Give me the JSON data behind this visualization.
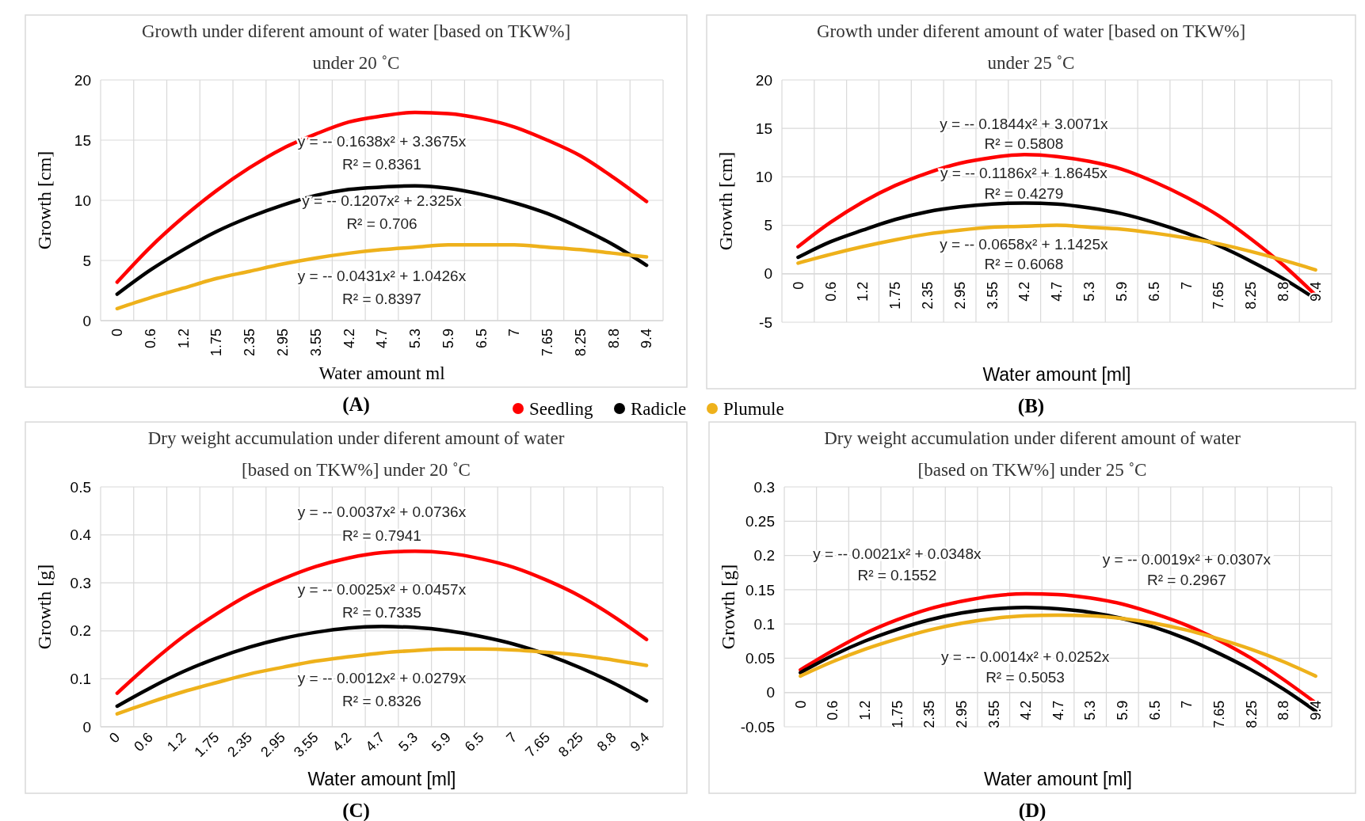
{
  "chart_data": [
    {
      "type": "line",
      "title": "Growth under diferent amount of water [based on TKW%] under 20 ˚C",
      "xlabel": "Water amount ml",
      "ylabel": "Growth [cm]",
      "categories": [
        "0",
        "0.6",
        "1.2",
        "1.75",
        "2.35",
        "2.95",
        "3.55",
        "4.2",
        "4.7",
        "5.3",
        "5.9",
        "6.5",
        "7",
        "7.65",
        "8.25",
        "8.8",
        "9.4"
      ],
      "series": [
        {
          "name": "Seedling",
          "color": "#ff0000",
          "values": [
            3.2,
            6.1,
            8.6,
            10.8,
            12.7,
            14.3,
            15.5,
            16.5,
            17.0,
            17.3,
            17.2,
            16.8,
            16.1,
            15.0,
            13.7,
            11.9,
            9.9
          ]
        },
        {
          "name": "Radicle",
          "color": "#000000",
          "values": [
            2.2,
            4.2,
            5.9,
            7.4,
            8.6,
            9.6,
            10.4,
            10.9,
            11.1,
            11.2,
            11.0,
            10.5,
            9.8,
            8.9,
            7.7,
            6.3,
            4.6
          ]
        },
        {
          "name": "Plumule",
          "color": "#eeb11b",
          "values": [
            1.0,
            1.9,
            2.7,
            3.5,
            4.1,
            4.7,
            5.2,
            5.6,
            5.9,
            6.1,
            6.3,
            6.3,
            6.3,
            6.1,
            5.9,
            5.6,
            5.3
          ]
        }
      ],
      "ylim": [
        0,
        20
      ],
      "yticks": [
        0,
        5,
        10,
        15,
        20
      ],
      "grid": true,
      "legend": "bottom",
      "annotations": [
        "y = -- 0.1638x² + 3.3675x",
        "R² = 0.8361",
        "y = -- 0.1207x² + 2.325x",
        "R² = 0.706",
        "y = -- 0.0431x² + 1.0426x",
        "R² = 0.8397",
        "(A)"
      ]
    },
    {
      "type": "line",
      "title": "Growth under diferent amount of water [based on TKW%] under 25 ˚C",
      "xlabel": "Water amount [ml]",
      "ylabel": "Growth [cm]",
      "categories": [
        "0",
        "0.6",
        "1.2",
        "1.75",
        "2.35",
        "2.95",
        "3.55",
        "4.2",
        "4.7",
        "5.3",
        "5.9",
        "6.5",
        "7",
        "7.65",
        "8.25",
        "8.8",
        "9.4"
      ],
      "series": [
        {
          "color": "#ff0000",
          "values": [
            2.8,
            5.3,
            7.4,
            9.1,
            10.4,
            11.4,
            12.0,
            12.3,
            12.1,
            11.6,
            10.8,
            9.5,
            7.9,
            6.0,
            3.6,
            0.9,
            -2.2
          ]
        },
        {
          "color": "#000000",
          "values": [
            1.7,
            3.3,
            4.5,
            5.6,
            6.4,
            6.9,
            7.2,
            7.3,
            7.2,
            6.8,
            6.2,
            5.3,
            4.2,
            2.9,
            1.3,
            -0.5,
            -2.6
          ]
        },
        {
          "color": "#eeb11b",
          "values": [
            1.1,
            2.0,
            2.8,
            3.5,
            4.1,
            4.5,
            4.8,
            4.9,
            5.0,
            4.8,
            4.6,
            4.2,
            3.7,
            3.1,
            2.3,
            1.4,
            0.4
          ]
        }
      ],
      "ylim": [
        -5,
        20
      ],
      "yticks": [
        -5,
        0,
        5,
        10,
        15,
        20
      ],
      "grid": true,
      "annotations": [
        "y = -- 0.1844x² + 3.0071x",
        "R² = 0.5808",
        "y = -- 0.1186x² + 1.8645x",
        "R² = 0.4279",
        "y = -- 0.0658x² + 1.1425x",
        "R² = 0.6068",
        "(B)"
      ]
    },
    {
      "type": "line",
      "title": "Dry weight accumulation under diferent amount of water [based on TKW%] under 20 ˚C",
      "xlabel": "Water amount [ml]",
      "ylabel": "Growth [g]",
      "categories": [
        "0",
        "0.6",
        "1.2",
        "1.75",
        "2.35",
        "2.95",
        "3.55",
        "4.2",
        "4.7",
        "5.3",
        "5.9",
        "6.5",
        "7",
        "7.65",
        "8.25",
        "8.8",
        "9.4"
      ],
      "series": [
        {
          "color": "#ff0000",
          "values": [
            0.07,
            0.132,
            0.188,
            0.235,
            0.276,
            0.308,
            0.334,
            0.352,
            0.363,
            0.366,
            0.362,
            0.35,
            0.332,
            0.305,
            0.272,
            0.23,
            0.182
          ]
        },
        {
          "color": "#000000",
          "values": [
            0.043,
            0.081,
            0.115,
            0.143,
            0.166,
            0.184,
            0.197,
            0.206,
            0.209,
            0.207,
            0.2,
            0.188,
            0.172,
            0.15,
            0.123,
            0.091,
            0.054
          ]
        },
        {
          "color": "#eeb11b",
          "values": [
            0.027,
            0.051,
            0.073,
            0.092,
            0.11,
            0.124,
            0.137,
            0.146,
            0.154,
            0.159,
            0.162,
            0.162,
            0.16,
            0.155,
            0.149,
            0.139,
            0.128
          ]
        }
      ],
      "ylim": [
        0,
        0.5
      ],
      "yticks": [
        0,
        0.1,
        0.2,
        0.3,
        0.4,
        0.5
      ],
      "grid": true,
      "annotations": [
        "y = -- 0.0037x² + 0.0736x",
        "R² = 0.7941",
        "y = -- 0.0025x² + 0.0457x",
        "R² = 0.7335",
        "y = -- 0.0012x² + 0.0279x",
        "R² = 0.8326",
        "(C)"
      ]
    },
    {
      "type": "line",
      "title": "Dry weight accumulation under diferent amount of water [based on TKW%] under 25 ˚C",
      "xlabel": "Water amount [ml]",
      "ylabel": "Growth [g]",
      "categories": [
        "0",
        "0.6",
        "1.2",
        "1.75",
        "2.35",
        "2.95",
        "3.55",
        "4.2",
        "4.7",
        "5.3",
        "5.9",
        "6.5",
        "7",
        "7.65",
        "8.25",
        "8.8",
        "9.4"
      ],
      "series": [
        {
          "color": "#ff0000",
          "values": [
            0.033,
            0.061,
            0.086,
            0.106,
            0.122,
            0.133,
            0.141,
            0.144,
            0.143,
            0.138,
            0.129,
            0.115,
            0.098,
            0.076,
            0.05,
            0.019,
            -0.015
          ]
        },
        {
          "color": "#000000",
          "values": [
            0.029,
            0.054,
            0.075,
            0.092,
            0.106,
            0.116,
            0.122,
            0.124,
            0.122,
            0.117,
            0.108,
            0.095,
            0.078,
            0.057,
            0.033,
            0.005,
            -0.027
          ]
        },
        {
          "color": "#eeb11b",
          "values": [
            0.024,
            0.045,
            0.063,
            0.078,
            0.091,
            0.101,
            0.108,
            0.112,
            0.113,
            0.112,
            0.108,
            0.101,
            0.091,
            0.078,
            0.063,
            0.045,
            0.024
          ]
        }
      ],
      "ylim": [
        -0.05,
        0.3
      ],
      "yticks": [
        -0.05,
        0,
        0.05,
        0.1,
        0.15,
        0.2,
        0.25,
        0.3
      ],
      "grid": true,
      "annotations": [
        "y = -- 0.0021x² + 0.0348x",
        "R² = 0.1552",
        "y = -- 0.0019x² + 0.0307x",
        "R² = 0.2967",
        "y = -- 0.0014x² + 0.0252x",
        "R² = 0.5053",
        "(D)"
      ]
    }
  ]
}
